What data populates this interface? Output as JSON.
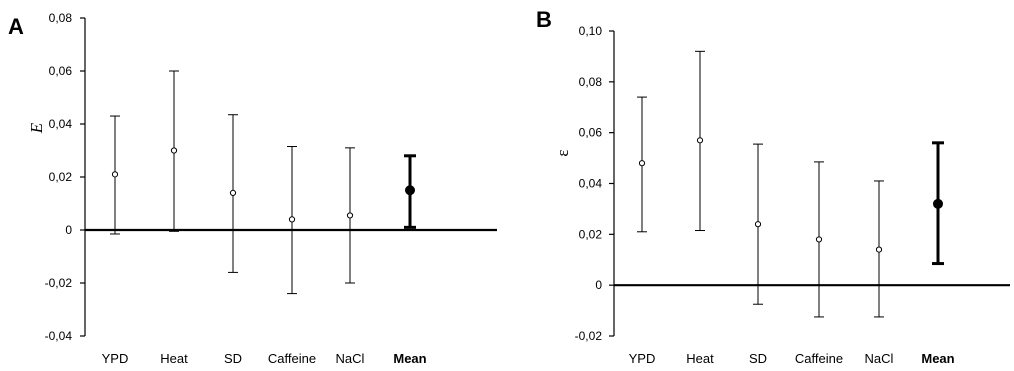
{
  "chart_data": [
    {
      "type": "scatter",
      "panel_label": "A",
      "ylabel": "E",
      "categories": [
        "YPD",
        "Heat",
        "SD",
        "Caffeine",
        "NaCl",
        "Mean"
      ],
      "bold_categories": [
        "Mean"
      ],
      "y_ticks": [
        "0,08",
        "0,06",
        "0,04",
        "0,02",
        "0",
        "-0,02",
        "-0,04"
      ],
      "ylim": [
        -0.04,
        0.08
      ],
      "values": [
        0.021,
        0.03,
        0.014,
        0.004,
        0.0055,
        0.015
      ],
      "err_low": [
        -0.0015,
        -0.0005,
        -0.016,
        -0.024,
        -0.02,
        0.001
      ],
      "err_high": [
        0.043,
        0.06,
        0.0435,
        0.0315,
        0.031,
        0.028
      ],
      "grid": false,
      "legend": "none"
    },
    {
      "type": "scatter",
      "panel_label": "B",
      "ylabel": "ε",
      "categories": [
        "YPD",
        "Heat",
        "SD",
        "Caffeine",
        "NaCl",
        "Mean"
      ],
      "bold_categories": [
        "Mean"
      ],
      "y_ticks": [
        "0,10",
        "0,08",
        "0,06",
        "0,04",
        "0,02",
        "0",
        "-0,02"
      ],
      "ylim": [
        -0.02,
        0.1
      ],
      "values": [
        0.048,
        0.057,
        0.024,
        0.018,
        0.014,
        0.032
      ],
      "err_low": [
        0.021,
        0.0215,
        -0.0075,
        -0.0125,
        -0.0125,
        0.0085
      ],
      "err_high": [
        0.074,
        0.092,
        0.0555,
        0.0485,
        0.041,
        0.056
      ],
      "grid": false,
      "legend": "none"
    }
  ]
}
